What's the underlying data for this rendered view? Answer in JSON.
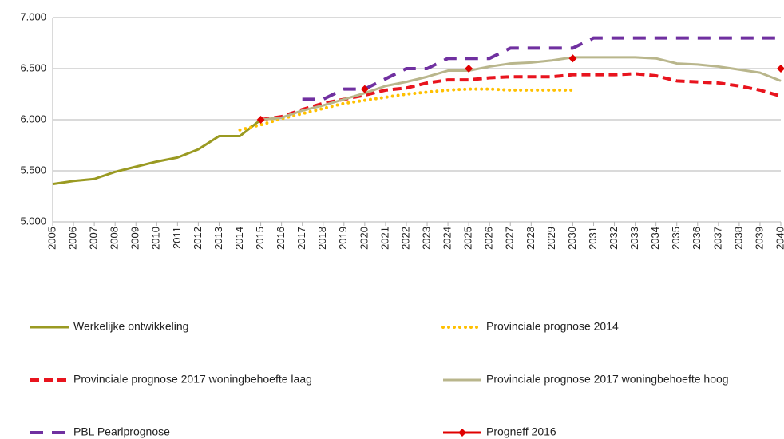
{
  "chart_data": {
    "type": "line",
    "x": [
      "2005",
      "2006",
      "2007",
      "2008",
      "2009",
      "2010",
      "2011",
      "2012",
      "2013",
      "2014",
      "2015",
      "2016",
      "2017",
      "2018",
      "2019",
      "2020",
      "2021",
      "2022",
      "2023",
      "2024",
      "2025",
      "2026",
      "2027",
      "2028",
      "2029",
      "2030",
      "2031",
      "2032",
      "2033",
      "2034",
      "2035",
      "2036",
      "2037",
      "2038",
      "2039",
      "2040"
    ],
    "ylim": [
      5000,
      7000
    ],
    "yticks": [
      {
        "value": 5000,
        "label": "5.000"
      },
      {
        "value": 5500,
        "label": "5.500"
      },
      {
        "value": 6000,
        "label": "6.000"
      },
      {
        "value": 6500,
        "label": "6.500"
      },
      {
        "value": 7000,
        "label": "7.000"
      }
    ],
    "grid": true,
    "series": [
      {
        "name": "Werkelijke ontwikkeling",
        "color": "#9a9a22",
        "style": "solid",
        "values": [
          5370,
          5400,
          5420,
          5490,
          5540,
          5590,
          5630,
          5710,
          5840,
          5840,
          6000,
          6020,
          null,
          null,
          null,
          null,
          null,
          null,
          null,
          null,
          null,
          null,
          null,
          null,
          null,
          null,
          null,
          null,
          null,
          null,
          null,
          null,
          null,
          null,
          null,
          null
        ]
      },
      {
        "name": "Provinciale prognose 2014",
        "color": "#ffc000",
        "style": "dotted",
        "values": [
          null,
          null,
          null,
          null,
          null,
          null,
          null,
          null,
          null,
          5900,
          5950,
          6010,
          6060,
          6110,
          6160,
          6190,
          6220,
          6250,
          6270,
          6290,
          6300,
          6300,
          6290,
          6290,
          6290,
          6290,
          null,
          null,
          null,
          null,
          null,
          null,
          null,
          null,
          null,
          null
        ]
      },
      {
        "name": "Provinciale prognose 2017 woningbehoefte laag",
        "color": "#e8141e",
        "style": "dashed",
        "values": [
          null,
          null,
          null,
          null,
          null,
          null,
          null,
          null,
          null,
          null,
          6000,
          6030,
          6100,
          6160,
          6200,
          6240,
          6290,
          6310,
          6360,
          6390,
          6390,
          6410,
          6420,
          6420,
          6420,
          6440,
          6440,
          6440,
          6450,
          6430,
          6380,
          6370,
          6360,
          6330,
          6290,
          6230
        ]
      },
      {
        "name": "Provinciale prognose 2017 woningbehoefte hoog",
        "color": "#b9b68c",
        "style": "solid",
        "values": [
          null,
          null,
          null,
          null,
          null,
          null,
          null,
          null,
          null,
          null,
          6000,
          6020,
          6090,
          6140,
          6200,
          6260,
          6330,
          6370,
          6420,
          6480,
          6480,
          6520,
          6550,
          6560,
          6580,
          6610,
          6610,
          6610,
          6610,
          6600,
          6550,
          6540,
          6520,
          6490,
          6460,
          6380
        ]
      },
      {
        "name": "PBL Pearlprognose",
        "color": "#7030a0",
        "style": "longdash",
        "values": [
          null,
          null,
          null,
          null,
          null,
          null,
          null,
          null,
          null,
          null,
          null,
          null,
          6200,
          6200,
          6300,
          6300,
          6400,
          6500,
          6500,
          6600,
          6600,
          6600,
          6700,
          6700,
          6700,
          6700,
          6800,
          6800,
          6800,
          6800,
          6800,
          6800,
          6800,
          6800,
          6800,
          6800
        ]
      },
      {
        "name": "Progneff 2016",
        "color": "#e00000",
        "style": "markers",
        "values": [
          null,
          null,
          null,
          null,
          null,
          null,
          null,
          null,
          null,
          null,
          6000,
          null,
          null,
          null,
          null,
          6300,
          null,
          null,
          null,
          null,
          6500,
          null,
          null,
          null,
          null,
          6600,
          null,
          null,
          null,
          null,
          null,
          null,
          null,
          null,
          null,
          6500
        ]
      }
    ]
  }
}
